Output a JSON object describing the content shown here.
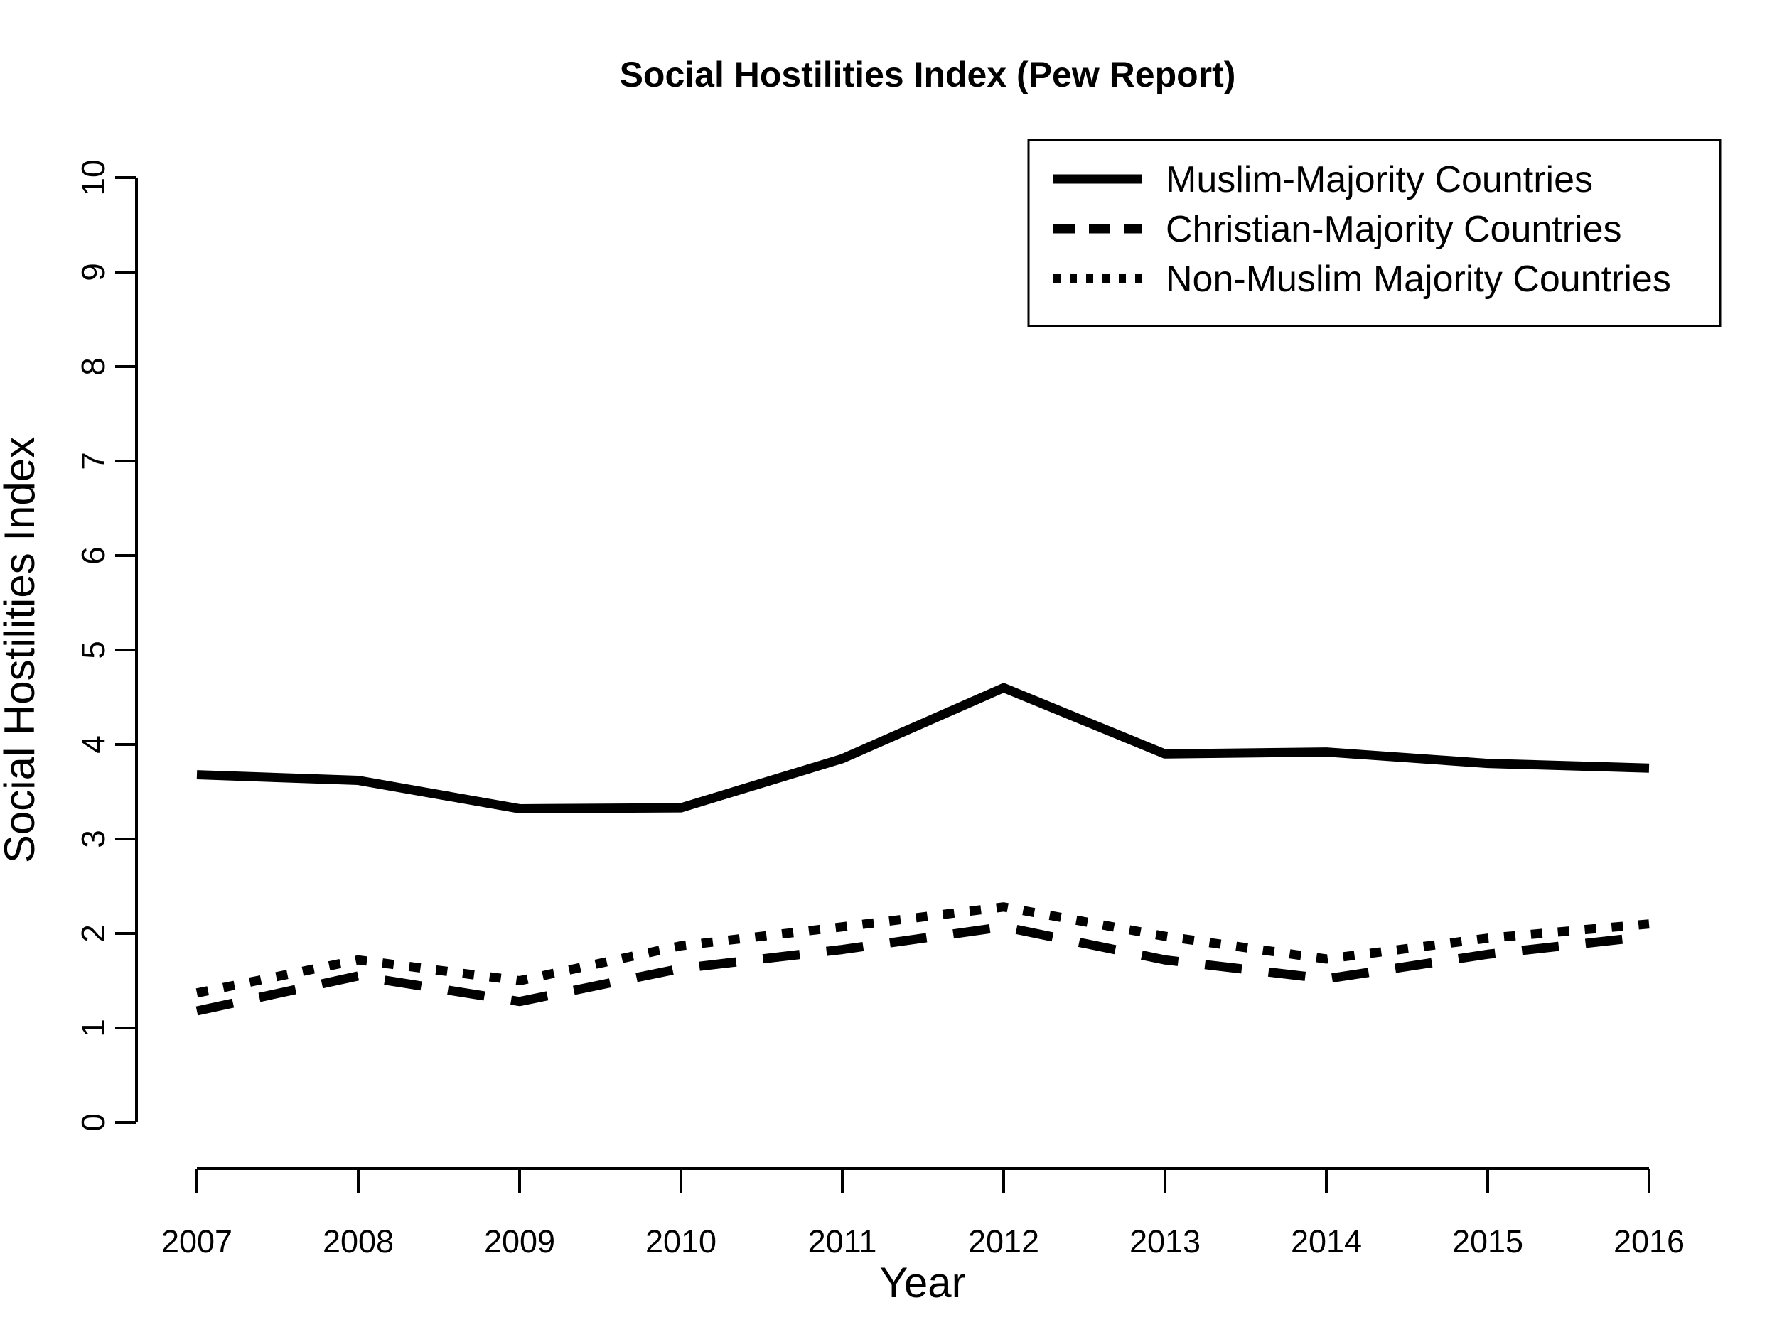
{
  "page": {
    "background": "#ffffff",
    "foreground": "#000000"
  },
  "chart_data": {
    "type": "line",
    "title": "Social Hostilities Index (Pew Report)",
    "xlabel": "Year",
    "ylabel": "Social Hostilities Index",
    "x": [
      2007,
      2008,
      2009,
      2010,
      2011,
      2012,
      2013,
      2014,
      2015,
      2016
    ],
    "xtick_labels": [
      "2007",
      "2008",
      "2009",
      "2010",
      "2011",
      "2012",
      "2013",
      "2014",
      "2015",
      "2016"
    ],
    "ylim": [
      0,
      10
    ],
    "yticks": [
      0,
      1,
      2,
      3,
      4,
      5,
      6,
      7,
      8,
      9,
      10
    ],
    "grid": false,
    "legend_position": "topright",
    "line_color": "#000000",
    "series": [
      {
        "name": "Muslim-Majority Countries",
        "linestyle": "solid",
        "values": [
          3.68,
          3.62,
          3.32,
          3.33,
          3.85,
          4.6,
          3.9,
          3.92,
          3.8,
          3.75
        ]
      },
      {
        "name": "Christian-Majority Countries",
        "linestyle": "dashed",
        "values": [
          1.18,
          1.55,
          1.28,
          1.63,
          1.83,
          2.07,
          1.72,
          1.52,
          1.78,
          1.97
        ]
      },
      {
        "name": "Non-Muslim Majority Countries",
        "linestyle": "dotted",
        "values": [
          1.37,
          1.72,
          1.5,
          1.87,
          2.07,
          2.28,
          1.97,
          1.73,
          1.95,
          2.1
        ]
      }
    ],
    "legend_entries": [
      {
        "label": "Muslim-Majority Countries",
        "linestyle": "solid"
      },
      {
        "label": "Christian-Majority Countries",
        "linestyle": "dashed"
      },
      {
        "label": "Non-Muslim Majority Countries",
        "linestyle": "dotted"
      }
    ]
  }
}
